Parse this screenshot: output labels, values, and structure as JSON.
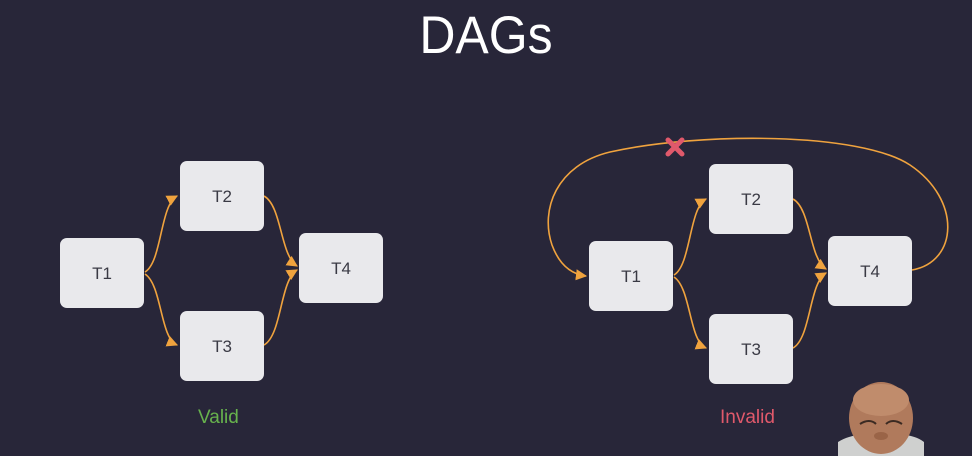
{
  "title": "DAGs",
  "colors": {
    "background": "#282639",
    "node": "#e9e9ec",
    "edge": "#f0a33e",
    "valid": "#67b24d",
    "invalid": "#e0596b",
    "cross": "#e0596b"
  },
  "valid_graph": {
    "caption": "Valid",
    "nodes": [
      {
        "id": "t1",
        "label": "T1"
      },
      {
        "id": "t2",
        "label": "T2"
      },
      {
        "id": "t3",
        "label": "T3"
      },
      {
        "id": "t4",
        "label": "T4"
      }
    ],
    "edges": [
      [
        "T1",
        "T2"
      ],
      [
        "T1",
        "T3"
      ],
      [
        "T2",
        "T4"
      ],
      [
        "T3",
        "T4"
      ]
    ]
  },
  "invalid_graph": {
    "caption": "Invalid",
    "nodes": [
      {
        "id": "t1",
        "label": "T1"
      },
      {
        "id": "t2",
        "label": "T2"
      },
      {
        "id": "t3",
        "label": "T3"
      },
      {
        "id": "t4",
        "label": "T4"
      }
    ],
    "edges": [
      [
        "T1",
        "T2"
      ],
      [
        "T1",
        "T3"
      ],
      [
        "T2",
        "T4"
      ],
      [
        "T3",
        "T4"
      ],
      [
        "T4",
        "T1"
      ]
    ],
    "crossed_edge": [
      "T4",
      "T1"
    ]
  },
  "icons": {
    "cross": "close-x-icon",
    "presenter": "presenter-video-thumbnail"
  }
}
